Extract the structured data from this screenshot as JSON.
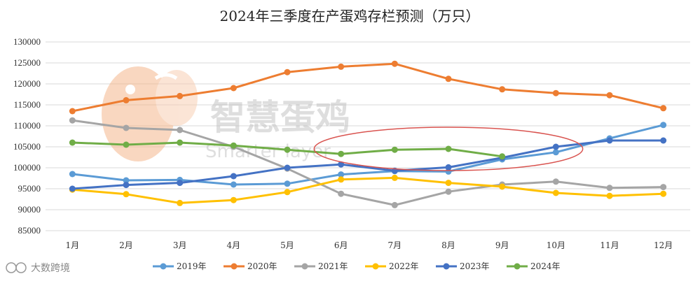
{
  "watermark": {
    "main": "智慧蛋鸡",
    "sub": "Smarter layer"
  },
  "corner_mark": "大数跨境",
  "colors": {
    "2019": "#5B9BD5",
    "2020": "#ED7D31",
    "2021": "#A5A5A5",
    "2022": "#FFC000",
    "2023": "#4472C4",
    "2024": "#70AD47",
    "highlight": "#D9534F",
    "grid": "#D9D9D9"
  },
  "chart_data": {
    "type": "line",
    "title": "2024年三季度在产蛋鸡存栏预测（万只）",
    "categories": [
      "1月",
      "2月",
      "3月",
      "4月",
      "5月",
      "6月",
      "7月",
      "8月",
      "9月",
      "10月",
      "11月",
      "12月"
    ],
    "ylim": [
      85000,
      130000
    ],
    "yticks": [
      85000,
      90000,
      95000,
      100000,
      105000,
      110000,
      115000,
      120000,
      125000,
      130000
    ],
    "grid": true,
    "legend_position": "bottom",
    "series": [
      {
        "name": "2019年",
        "key": "2019",
        "values": [
          98500,
          97000,
          97100,
          96000,
          96200,
          98400,
          99200,
          99100,
          102000,
          103700,
          107000,
          110200
        ]
      },
      {
        "name": "2020年",
        "key": "2020",
        "values": [
          113500,
          116100,
          117100,
          119000,
          122800,
          124100,
          124800,
          121200,
          118700,
          117800,
          117300,
          114200
        ]
      },
      {
        "name": "2021年",
        "key": "2021",
        "values": [
          111300,
          109500,
          109000,
          105000,
          99800,
          93800,
          91100,
          94300,
          96000,
          96700,
          95200,
          95400
        ]
      },
      {
        "name": "2022年",
        "key": "2022",
        "values": [
          94800,
          93700,
          91600,
          92300,
          94200,
          97200,
          97600,
          96400,
          95500,
          94000,
          93300,
          93800
        ]
      },
      {
        "name": "2023年",
        "key": "2023",
        "values": [
          95000,
          95900,
          96400,
          98000,
          100000,
          100800,
          99300,
          100100,
          102400,
          105000,
          106500,
          106500
        ]
      },
      {
        "name": "2024年",
        "key": "2024",
        "values": [
          106000,
          105500,
          106000,
          105300,
          104300,
          103300,
          104300,
          104500,
          102700,
          null,
          null,
          null
        ]
      }
    ],
    "annotation": {
      "type": "ellipse",
      "around_categories": [
        "7月",
        "8月",
        "9月"
      ],
      "center_value": 104500
    }
  }
}
